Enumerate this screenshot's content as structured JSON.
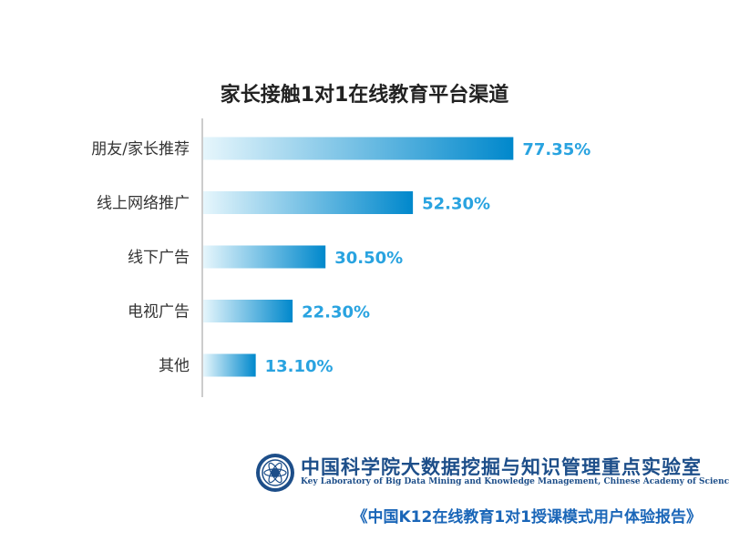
{
  "chart_data": {
    "type": "bar",
    "orientation": "horizontal",
    "title": "家长接触1对1在线教育平台渠道",
    "categories": [
      "朋友/家长推荐",
      "线上网络推广",
      "线下广告",
      "电视广告",
      "其他"
    ],
    "values": [
      77.35,
      52.3,
      30.5,
      22.3,
      13.1
    ],
    "data_labels": [
      "77.35%",
      "52.30%",
      "30.50%",
      "22.30%",
      "13.10%"
    ],
    "xlim": [
      0,
      100
    ],
    "grid": false,
    "colors": {
      "bar_start": "#e6f6fc",
      "bar_end": "#0088cc",
      "label": "#29a3e0",
      "axis": "#bbbbbb"
    }
  },
  "footer": {
    "org_cn": "中国科学院大数据挖掘与知识管理重点实验室",
    "org_en": "Key Laboratory of Big Data Mining and Knowledge Management, Chinese Academy of Sciences",
    "source": "《中国K12在线教育1对1授课模式用户体验报告》",
    "logo_icon": "cas-emblem-icon"
  }
}
